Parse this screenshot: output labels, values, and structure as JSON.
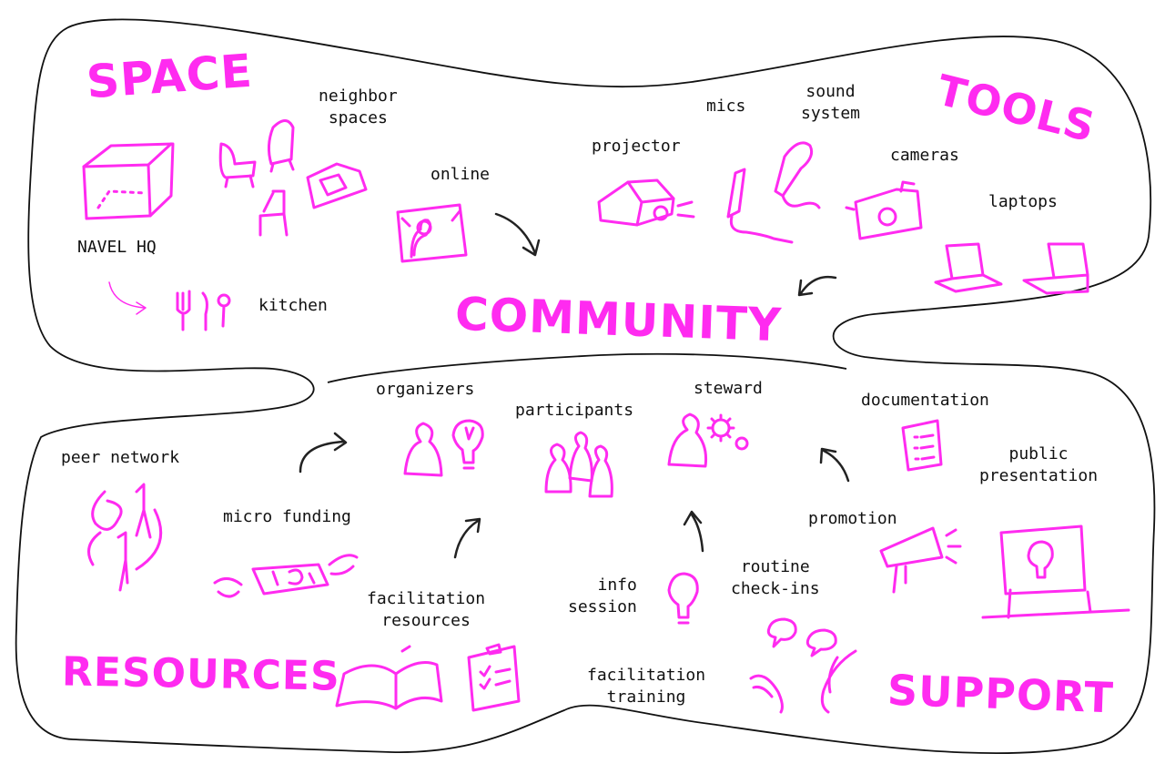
{
  "sections": {
    "space": "SPACE",
    "tools": "TOOLS",
    "community": "COMMUNITY",
    "resources": "RESOURCES",
    "support": "SUPPORT"
  },
  "labels": {
    "neighbor_spaces": "neighbor\nspaces",
    "online": "online",
    "navel_hq": "NAVEL HQ",
    "kitchen": "kitchen",
    "projector": "projector",
    "mics": "mics",
    "sound_system": "sound\nsystem",
    "cameras": "cameras",
    "laptops": "laptops",
    "organizers": "organizers",
    "participants": "participants",
    "steward": "steward",
    "documentation": "documentation",
    "public_presentation": "public\npresentation",
    "peer_network": "peer network",
    "micro_funding": "micro funding",
    "facilitation_resources": "facilitation\nresources",
    "info_session": "info\nsession",
    "routine_checkins": "routine\ncheck-ins",
    "promotion": "promotion",
    "facilitation_training": "facilitation\ntraining"
  },
  "colors": {
    "accent": "#ff2bf0",
    "ink": "#111111"
  }
}
